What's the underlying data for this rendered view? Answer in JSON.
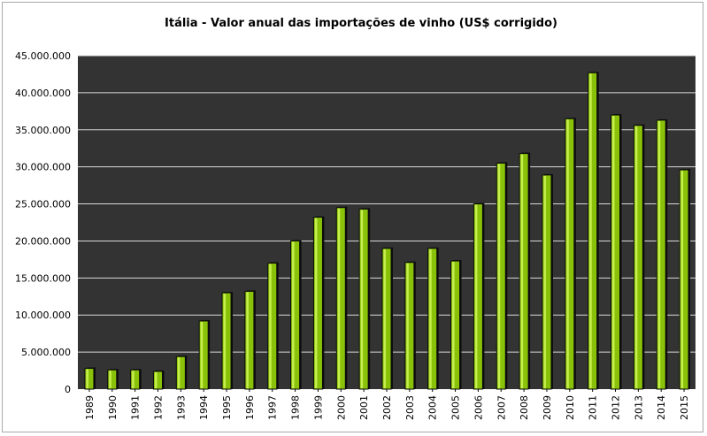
{
  "colors": {
    "plot_background": "#333333",
    "gridline": "#d9d9d9",
    "bar_fill": "#8ac20a",
    "bar_highlight": "#c6ee4e",
    "bar_outline": "#0d0d0d"
  },
  "chart_data": {
    "type": "bar",
    "title": "Itália - Valor anual das importações de vinho (US$ corrigido)",
    "xlabel": "",
    "ylabel": "",
    "ylim": [
      0,
      45000000
    ],
    "grid": true,
    "legend": "none",
    "ytick_values": [
      0,
      5000000,
      10000000,
      15000000,
      20000000,
      25000000,
      30000000,
      35000000,
      40000000,
      45000000
    ],
    "ytick_labels": [
      "0",
      "5.000.000",
      "10.000.000",
      "15.000.000",
      "20.000.000",
      "25.000.000",
      "30.000.000",
      "35.000.000",
      "40.000.000",
      "45.000.000"
    ],
    "categories": [
      "1989",
      "1990",
      "1991",
      "1992",
      "1993",
      "1994",
      "1995",
      "1996",
      "1997",
      "1998",
      "1999",
      "2000",
      "2001",
      "2002",
      "2003",
      "2004",
      "2005",
      "2006",
      "2007",
      "2008",
      "2009",
      "2010",
      "2011",
      "2012",
      "2013",
      "2014",
      "2015"
    ],
    "values": [
      2800000,
      2600000,
      2600000,
      2400000,
      4400000,
      9200000,
      13000000,
      13200000,
      17000000,
      20000000,
      23200000,
      24500000,
      24300000,
      19000000,
      17100000,
      19000000,
      17300000,
      25000000,
      30500000,
      31800000,
      28900000,
      36500000,
      42700000,
      37000000,
      35600000,
      36300000,
      29600000
    ]
  }
}
